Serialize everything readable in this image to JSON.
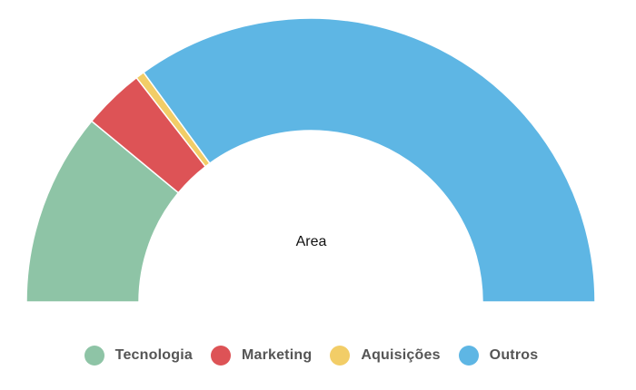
{
  "chart_data": {
    "type": "pie",
    "variant": "semi-donut",
    "center_label": "Area",
    "categories": [
      "Tecnologia",
      "Marketing",
      "Aquisições",
      "Outros"
    ],
    "values": [
      22,
      7,
      1,
      70
    ],
    "colors": [
      "#8EC4A6",
      "#DD5356",
      "#F2CD67",
      "#5EB6E4"
    ],
    "legend_position": "bottom"
  }
}
